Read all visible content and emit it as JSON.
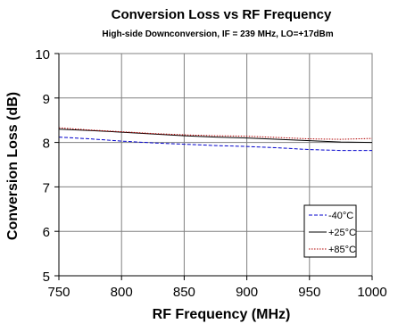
{
  "chart_data": {
    "type": "line",
    "title": "Conversion Loss vs RF Frequency",
    "subtitle": "High-side Downconversion, IF = 239 MHz, LO=+17dBm",
    "xlabel": "RF Frequency (MHz)",
    "ylabel": "Conversion Loss (dB)",
    "xlim": [
      750,
      1000
    ],
    "ylim": [
      5,
      10
    ],
    "xticks": [
      750,
      800,
      850,
      900,
      950,
      1000
    ],
    "yticks": [
      5,
      6,
      7,
      8,
      9,
      10
    ],
    "x_tick_labels": [
      "750",
      "800",
      "850",
      "900",
      "950",
      "1000"
    ],
    "y_tick_labels": [
      "5",
      "6",
      "7",
      "8",
      "9",
      "10"
    ],
    "grid": true,
    "legend_position": "lower-right",
    "series": [
      {
        "name": "-40°C",
        "color": "#0000cc",
        "style": "dashed",
        "x": [
          750,
          775,
          800,
          825,
          850,
          875,
          900,
          925,
          950,
          975,
          1000
        ],
        "y": [
          8.12,
          8.08,
          8.03,
          7.99,
          7.96,
          7.93,
          7.91,
          7.88,
          7.84,
          7.82,
          7.82
        ]
      },
      {
        "name": "+25°C",
        "color": "#000000",
        "style": "solid",
        "x": [
          750,
          775,
          800,
          825,
          850,
          875,
          900,
          925,
          950,
          975,
          1000
        ],
        "y": [
          8.3,
          8.27,
          8.23,
          8.19,
          8.15,
          8.12,
          8.1,
          8.07,
          8.04,
          8.01,
          8.0
        ]
      },
      {
        "name": "+85°C",
        "color": "#b00000",
        "style": "dotted",
        "x": [
          750,
          775,
          800,
          825,
          850,
          875,
          900,
          925,
          950,
          975,
          1000
        ],
        "y": [
          8.33,
          8.28,
          8.24,
          8.2,
          8.17,
          8.15,
          8.14,
          8.11,
          8.08,
          8.07,
          8.09
        ]
      }
    ]
  }
}
